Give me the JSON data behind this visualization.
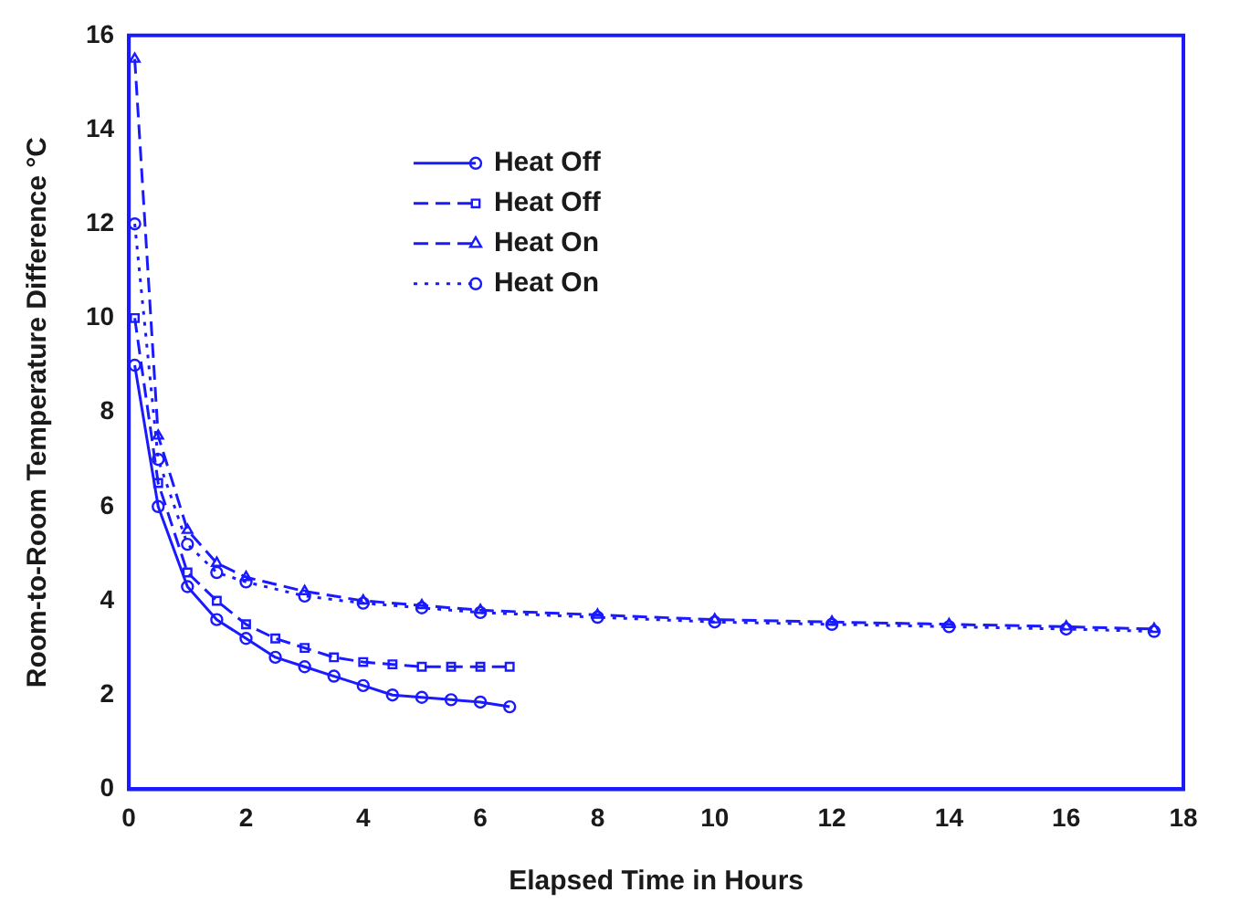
{
  "chart_data": {
    "type": "line",
    "xlabel": "Elapsed Time in Hours",
    "ylabel": "Room-to-Room Temperature Difference °C",
    "xlim": [
      0,
      18
    ],
    "xticks": [
      0,
      2,
      4,
      6,
      8,
      10,
      12,
      14,
      16,
      18
    ],
    "ylim": [
      0,
      16
    ],
    "yticks": [
      0,
      2,
      4,
      6,
      8,
      10,
      12,
      14,
      16
    ],
    "legend": "top",
    "grid": false,
    "series": [
      {
        "name": "Heat Off",
        "color": "#1a1aff",
        "line_style": "solid",
        "marker": "circle",
        "x": [
          0.1,
          0.5,
          1,
          1.5,
          2,
          2.5,
          3,
          3.5,
          4,
          4.5,
          5,
          5.5,
          6,
          6.5
        ],
        "values": [
          9,
          6,
          4.3,
          3.6,
          3.2,
          2.8,
          2.6,
          2.4,
          2.2,
          2,
          1.95,
          1.9,
          1.85,
          1.75
        ]
      },
      {
        "name": "Heat Off",
        "color": "#1a1aff",
        "line_style": "dashed",
        "marker": "square",
        "x": [
          0.1,
          0.5,
          1,
          1.5,
          2,
          2.5,
          3,
          3.5,
          4,
          4.5,
          5,
          5.5,
          6,
          6.5
        ],
        "values": [
          10,
          6.5,
          4.6,
          4,
          3.5,
          3.2,
          3,
          2.8,
          2.7,
          2.65,
          2.6,
          2.6,
          2.6,
          2.6
        ]
      },
      {
        "name": "Heat On",
        "color": "#1a1aff",
        "line_style": "dashed",
        "marker": "triangle",
        "x": [
          0.1,
          0.5,
          1,
          1.5,
          2,
          3,
          4,
          5,
          6,
          8,
          10,
          12,
          14,
          16,
          17.5
        ],
        "values": [
          15.5,
          7.5,
          5.5,
          4.8,
          4.5,
          4.2,
          4,
          3.9,
          3.8,
          3.7,
          3.6,
          3.55,
          3.5,
          3.45,
          3.4
        ]
      },
      {
        "name": "Heat On",
        "color": "#1a1aff",
        "line_style": "dotted",
        "marker": "circle",
        "x": [
          0.1,
          0.5,
          1,
          1.5,
          2,
          3,
          4,
          5,
          6,
          8,
          10,
          12,
          14,
          16,
          17.5
        ],
        "values": [
          12,
          7,
          5.2,
          4.6,
          4.4,
          4.1,
          3.95,
          3.85,
          3.75,
          3.65,
          3.55,
          3.5,
          3.45,
          3.4,
          3.35
        ]
      }
    ]
  }
}
